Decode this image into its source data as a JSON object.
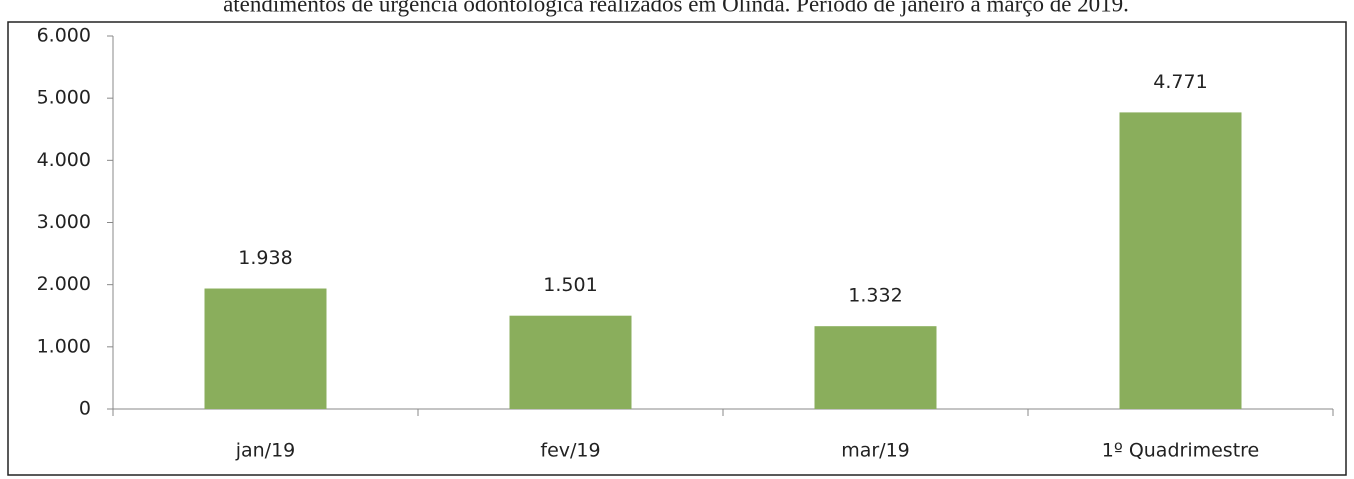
{
  "chart_data": {
    "type": "bar",
    "title": "atendimentos de urgência odontológica realizados em Olinda. Período de janeiro a março de 2019.",
    "categories": [
      "jan/19",
      "fev/19",
      "mar/19",
      "1º Quadrimestre"
    ],
    "values": [
      1938,
      1501,
      1332,
      4771
    ],
    "value_labels": [
      "1.938",
      "1.501",
      "1.332",
      "4.771"
    ],
    "color": "#8aae5c",
    "ylim": [
      0,
      6000
    ],
    "yticks": [
      0,
      {
        "value": 1000,
        "label": "1.000"
      },
      {
        "value": 2000,
        "label": "2.000"
      },
      {
        "value": 3000,
        "label": "3.000"
      },
      {
        "value": 4000,
        "label": "4.000"
      },
      {
        "value": 5000,
        "label": "5.000"
      },
      {
        "value": 6000,
        "label": "6.000"
      }
    ],
    "grid": false
  }
}
